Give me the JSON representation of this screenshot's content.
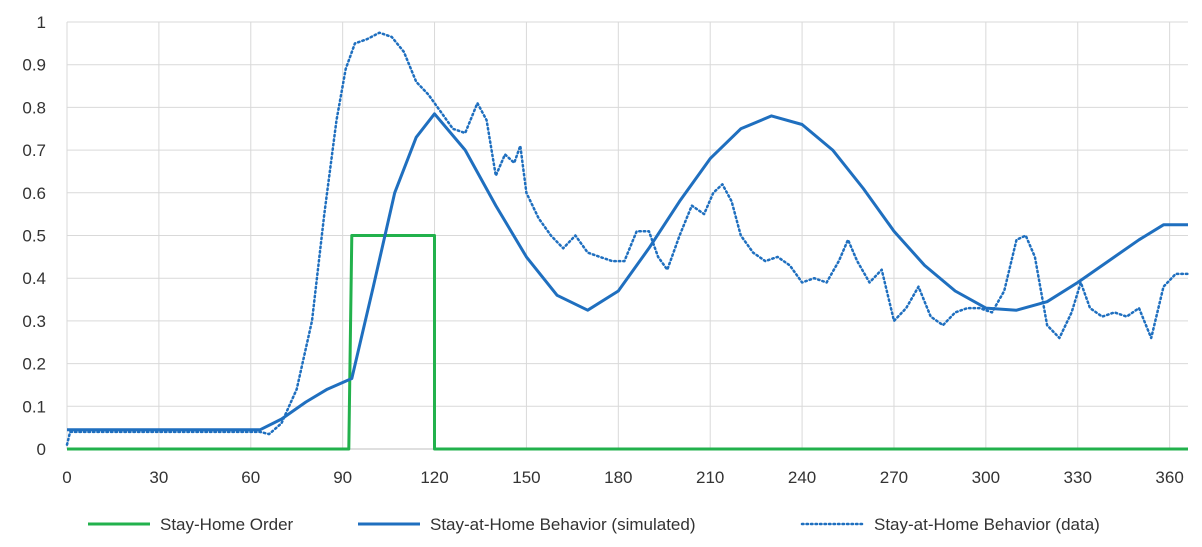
{
  "chart_data": {
    "type": "line",
    "title": "",
    "xlabel": "",
    "ylabel": "",
    "xlim": [
      0,
      366
    ],
    "ylim": [
      0,
      1
    ],
    "x_ticks": [
      0,
      30,
      60,
      90,
      120,
      150,
      180,
      210,
      240,
      270,
      300,
      330,
      360
    ],
    "y_ticks": [
      0,
      0.1,
      0.2,
      0.3,
      0.4,
      0.5,
      0.6,
      0.7,
      0.8,
      0.9,
      1
    ],
    "x_tick_labels": [
      "0",
      "30",
      "60",
      "90",
      "120",
      "150",
      "180",
      "210",
      "240",
      "270",
      "300",
      "330",
      "360"
    ],
    "y_tick_labels": [
      "0",
      "0.1",
      "0.2",
      "0.3",
      "0.4",
      "0.5",
      "0.6",
      "0.7",
      "0.8",
      "0.9",
      "1"
    ],
    "grid": true,
    "legend_position": "bottom",
    "series": [
      {
        "name": "Stay-Home Order",
        "color": "#22b14c",
        "style": "solid",
        "points": [
          [
            0,
            0
          ],
          [
            92,
            0
          ],
          [
            93,
            0.5
          ],
          [
            120,
            0.5
          ],
          [
            120,
            0
          ],
          [
            366,
            0
          ]
        ]
      },
      {
        "name": "Stay-at-Home Behavior (simulated)",
        "color": "#1f6fbf",
        "style": "solid",
        "points": [
          [
            0,
            0.045
          ],
          [
            63,
            0.045
          ],
          [
            70,
            0.07
          ],
          [
            78,
            0.11
          ],
          [
            85,
            0.14
          ],
          [
            93,
            0.165
          ],
          [
            100,
            0.38
          ],
          [
            107,
            0.6
          ],
          [
            114,
            0.73
          ],
          [
            120,
            0.785
          ],
          [
            130,
            0.7
          ],
          [
            140,
            0.57
          ],
          [
            150,
            0.45
          ],
          [
            160,
            0.36
          ],
          [
            170,
            0.325
          ],
          [
            180,
            0.37
          ],
          [
            190,
            0.47
          ],
          [
            200,
            0.58
          ],
          [
            210,
            0.68
          ],
          [
            220,
            0.75
          ],
          [
            230,
            0.78
          ],
          [
            240,
            0.76
          ],
          [
            250,
            0.7
          ],
          [
            260,
            0.61
          ],
          [
            270,
            0.51
          ],
          [
            280,
            0.43
          ],
          [
            290,
            0.37
          ],
          [
            300,
            0.33
          ],
          [
            310,
            0.325
          ],
          [
            320,
            0.345
          ],
          [
            330,
            0.39
          ],
          [
            340,
            0.44
          ],
          [
            350,
            0.49
          ],
          [
            358,
            0.525
          ],
          [
            366,
            0.525
          ]
        ]
      },
      {
        "name": "Stay-at-Home Behavior (data)",
        "color": "#1f6fbf",
        "style": "dotted",
        "points": [
          [
            0,
            0.01
          ],
          [
            1,
            0.04
          ],
          [
            63,
            0.04
          ],
          [
            66,
            0.035
          ],
          [
            70,
            0.06
          ],
          [
            75,
            0.14
          ],
          [
            80,
            0.3
          ],
          [
            84,
            0.55
          ],
          [
            88,
            0.77
          ],
          [
            91,
            0.89
          ],
          [
            94,
            0.95
          ],
          [
            98,
            0.96
          ],
          [
            102,
            0.975
          ],
          [
            106,
            0.965
          ],
          [
            110,
            0.93
          ],
          [
            114,
            0.86
          ],
          [
            118,
            0.83
          ],
          [
            122,
            0.79
          ],
          [
            126,
            0.75
          ],
          [
            130,
            0.74
          ],
          [
            134,
            0.81
          ],
          [
            137,
            0.77
          ],
          [
            140,
            0.64
          ],
          [
            143,
            0.69
          ],
          [
            146,
            0.67
          ],
          [
            148,
            0.71
          ],
          [
            150,
            0.6
          ],
          [
            154,
            0.54
          ],
          [
            158,
            0.5
          ],
          [
            162,
            0.47
          ],
          [
            166,
            0.5
          ],
          [
            170,
            0.46
          ],
          [
            174,
            0.45
          ],
          [
            178,
            0.44
          ],
          [
            182,
            0.44
          ],
          [
            186,
            0.51
          ],
          [
            190,
            0.51
          ],
          [
            193,
            0.45
          ],
          [
            196,
            0.42
          ],
          [
            200,
            0.5
          ],
          [
            204,
            0.57
          ],
          [
            208,
            0.55
          ],
          [
            211,
            0.6
          ],
          [
            214,
            0.62
          ],
          [
            217,
            0.58
          ],
          [
            220,
            0.5
          ],
          [
            224,
            0.46
          ],
          [
            228,
            0.44
          ],
          [
            232,
            0.45
          ],
          [
            236,
            0.43
          ],
          [
            240,
            0.39
          ],
          [
            244,
            0.4
          ],
          [
            248,
            0.39
          ],
          [
            252,
            0.44
          ],
          [
            255,
            0.49
          ],
          [
            258,
            0.44
          ],
          [
            262,
            0.39
          ],
          [
            266,
            0.42
          ],
          [
            270,
            0.3
          ],
          [
            274,
            0.33
          ],
          [
            278,
            0.38
          ],
          [
            282,
            0.31
          ],
          [
            286,
            0.29
          ],
          [
            290,
            0.32
          ],
          [
            294,
            0.33
          ],
          [
            298,
            0.33
          ],
          [
            302,
            0.32
          ],
          [
            306,
            0.37
          ],
          [
            310,
            0.49
          ],
          [
            313,
            0.5
          ],
          [
            316,
            0.45
          ],
          [
            320,
            0.29
          ],
          [
            324,
            0.26
          ],
          [
            328,
            0.32
          ],
          [
            331,
            0.39
          ],
          [
            334,
            0.33
          ],
          [
            338,
            0.31
          ],
          [
            342,
            0.32
          ],
          [
            346,
            0.31
          ],
          [
            350,
            0.33
          ],
          [
            354,
            0.26
          ],
          [
            358,
            0.38
          ],
          [
            362,
            0.41
          ],
          [
            366,
            0.41
          ]
        ]
      }
    ]
  }
}
